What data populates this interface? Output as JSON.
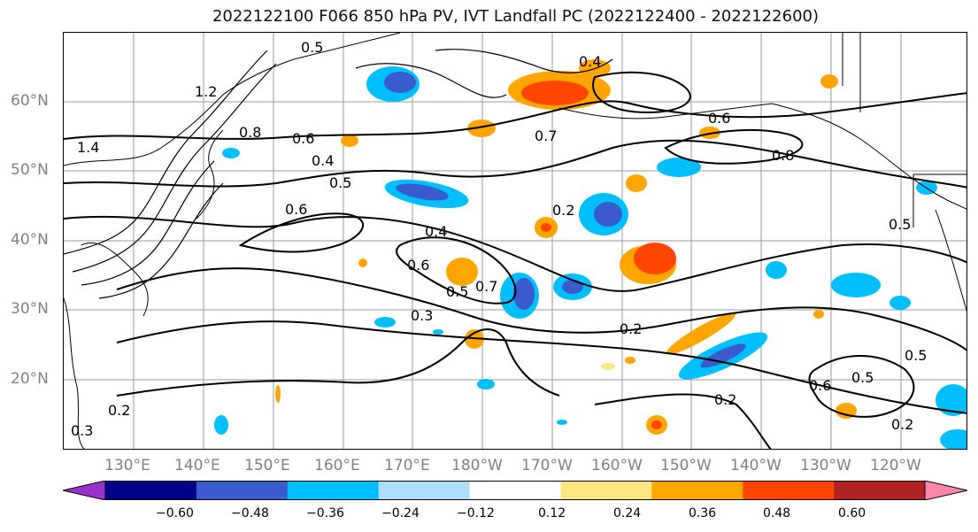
{
  "title": "2022122100 F066 850 hPa PV, IVT Landfall PC (2022122400 - 2022122600)",
  "lat_labels": [
    "60°N",
    "50°N",
    "40°N",
    "30°N",
    "20°N"
  ],
  "lon_labels": [
    "130°E",
    "140°E",
    "150°E",
    "160°E",
    "170°E",
    "180°W",
    "170°W",
    "160°W",
    "150°W",
    "140°W",
    "130°W",
    "120°W"
  ],
  "contour_labels": [
    "0.5",
    "0.5",
    "1.2",
    "0.8",
    "0.6",
    "0.4",
    "0.5",
    "0.6",
    "1.4",
    "0.4",
    "0.6",
    "0.7",
    "0.5",
    "0.3",
    "0.2",
    "0.2",
    "0.2",
    "0.6",
    "0.5",
    "0.2",
    "0.2",
    "0.8",
    "0.6",
    "0.7",
    "0.4",
    "0.5",
    "0.3"
  ],
  "colorbar": {
    "ticks": [
      "−0.60",
      "−0.48",
      "−0.36",
      "−0.24",
      "−0.12",
      "0.12",
      "0.24",
      "0.36",
      "0.48",
      "0.60"
    ],
    "colors": [
      "#9932CC",
      "#00008B",
      "#3A5BCD",
      "#00BFFF",
      "#ADDFFF",
      "#FFFFFF",
      "#FFE680",
      "#FFA500",
      "#FF4500",
      "#B22222",
      "#FF88AA"
    ]
  }
}
